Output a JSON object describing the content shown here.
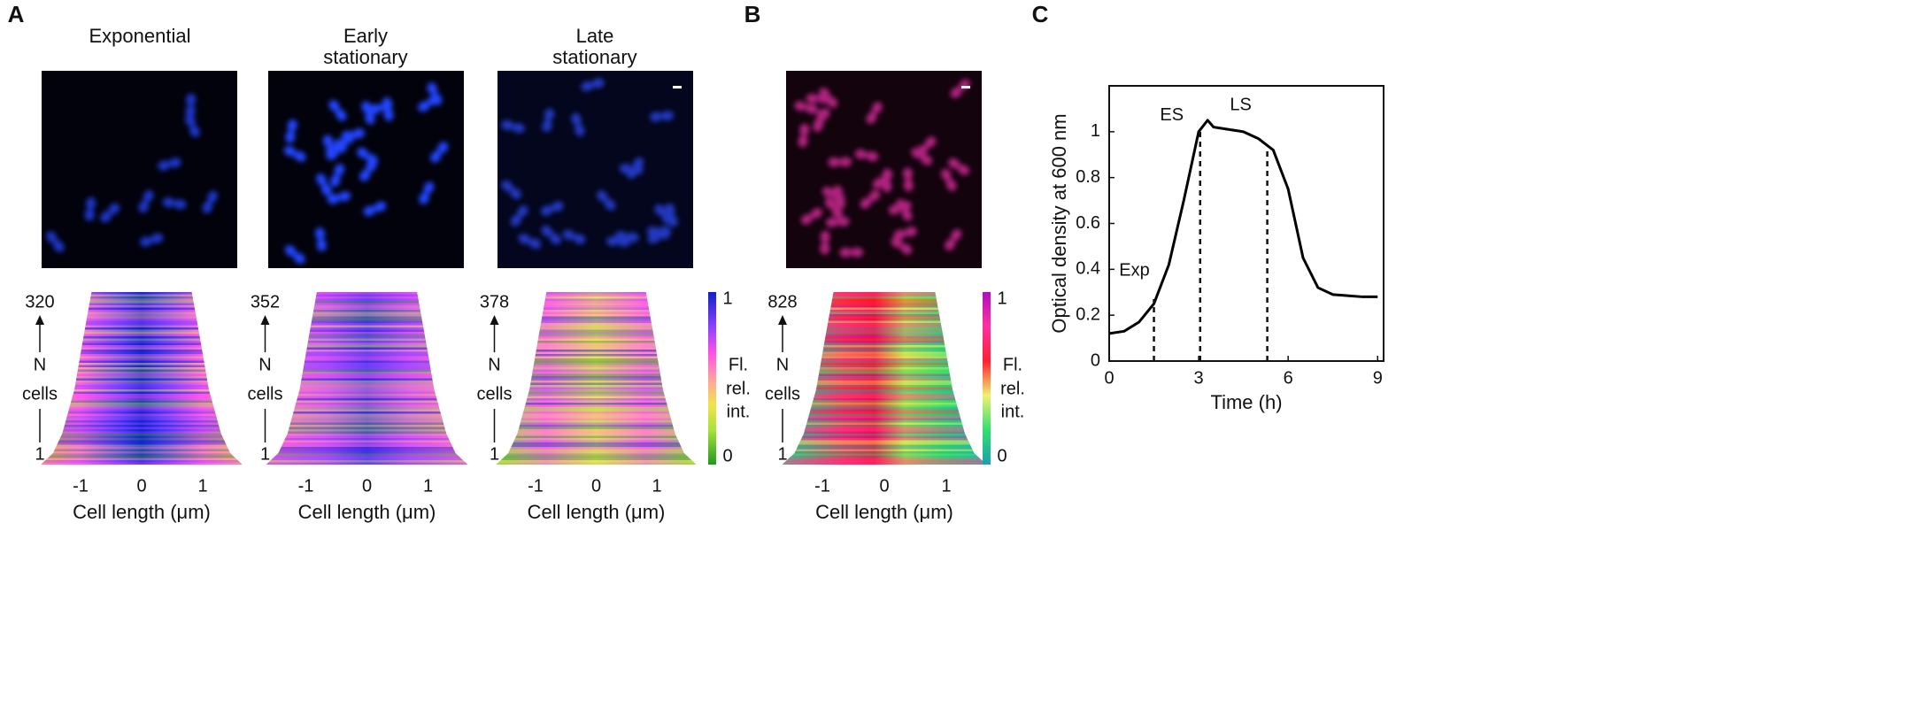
{
  "panels": {
    "A": {
      "letter": "A",
      "columns": [
        {
          "title": [
            "Exponential"
          ],
          "n_max": "320"
        },
        {
          "title": [
            "Early",
            "stationary"
          ],
          "n_max": "352"
        },
        {
          "title": [
            "Late",
            "stationary"
          ],
          "n_max": "378"
        }
      ],
      "colorbar": {
        "max": "1",
        "min": "0",
        "label": [
          "Fl.",
          "rel.",
          "int."
        ]
      }
    },
    "B": {
      "letter": "B",
      "columns": [
        {
          "n_max": "828"
        }
      ],
      "colorbar": {
        "max": "1",
        "min": "0",
        "label": [
          "Fl.",
          "rel.",
          "int."
        ]
      }
    },
    "C": {
      "letter": "C"
    }
  },
  "heatmap_axis": {
    "ticks": [
      "-1",
      "0",
      "1"
    ],
    "label": "Cell length (μm)",
    "y_label": [
      "N",
      "cells"
    ],
    "n_min": "1"
  },
  "chart_data": {
    "type": "line",
    "x_label": "Time (h)",
    "y_label": "Optical density at 600 nm",
    "x": [
      0,
      0.5,
      1,
      1.5,
      2,
      2.5,
      3,
      3.3,
      3.5,
      4,
      4.5,
      5,
      5.5,
      6,
      6.5,
      7,
      7.5,
      8,
      8.5,
      9
    ],
    "values": [
      0.12,
      0.13,
      0.17,
      0.25,
      0.42,
      0.7,
      1.0,
      1.05,
      1.02,
      1.01,
      1.0,
      0.97,
      0.92,
      0.75,
      0.45,
      0.32,
      0.29,
      0.285,
      0.28,
      0.28
    ],
    "color": "#000000",
    "xlim": [
      0,
      9.2
    ],
    "ylim": [
      0,
      1.2
    ],
    "xticks": [
      0,
      3,
      6,
      9
    ],
    "yticks": [
      0,
      0.2,
      0.4,
      0.6,
      0.8,
      1
    ],
    "annotations": [
      {
        "label": "Exp",
        "x": 1.5,
        "y": 0.27
      },
      {
        "label": "ES",
        "x": 3.05,
        "y": 1.0
      },
      {
        "label": "LS",
        "x": 5.3,
        "y": 0.93
      }
    ]
  }
}
